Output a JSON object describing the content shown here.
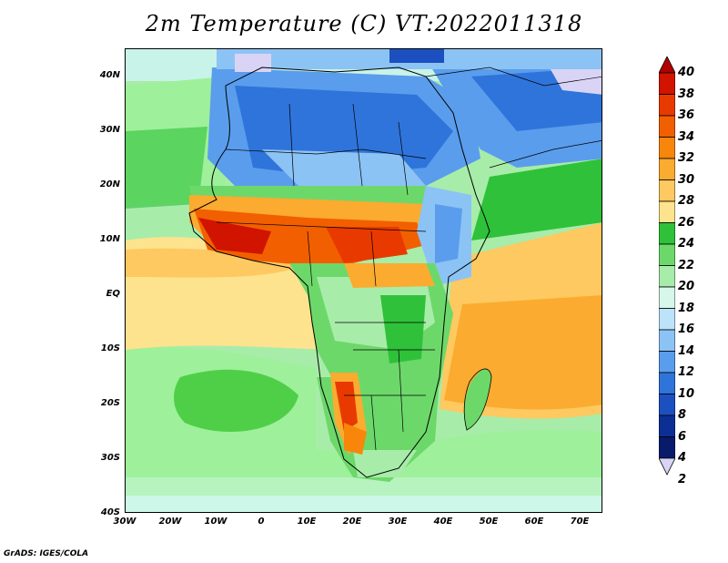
{
  "title": "2m Temperature (C) VT:2022011318",
  "footer": "GrADS: IGES/COLA",
  "map": {
    "y_labels": [
      "40N",
      "30N",
      "20N",
      "10N",
      "EQ",
      "10S",
      "20S",
      "30S",
      "40S"
    ],
    "x_labels": [
      "30W",
      "20W",
      "10W",
      "0",
      "10E",
      "20E",
      "30E",
      "40E",
      "50E",
      "60E",
      "70E"
    ],
    "lat_range": [
      -40,
      45
    ],
    "lon_range": [
      -30,
      75
    ]
  },
  "colorbar": {
    "labels": [
      "40",
      "38",
      "36",
      "34",
      "32",
      "30",
      "28",
      "26",
      "24",
      "22",
      "20",
      "18",
      "16",
      "14",
      "12",
      "10",
      "8",
      "6",
      "4",
      "2"
    ],
    "colors": [
      "#b00000",
      "#d01400",
      "#e83a00",
      "#f25f00",
      "#f7860b",
      "#fbab2f",
      "#fdc960",
      "#fde38d",
      "#2fc13a",
      "#6dd86a",
      "#a8ecaa",
      "#d6f7ea",
      "#bde3fb",
      "#8cc3f5",
      "#5a9ded",
      "#2f74da",
      "#1c50c0",
      "#0d2f95",
      "#081a6a",
      "#d9d4f5"
    ]
  },
  "palette": {
    "cold_north": "#3a7fe0",
    "sea_warm": "#fbab2f",
    "sahel_hot": "#e83a00",
    "land_green": "#2fc13a"
  }
}
